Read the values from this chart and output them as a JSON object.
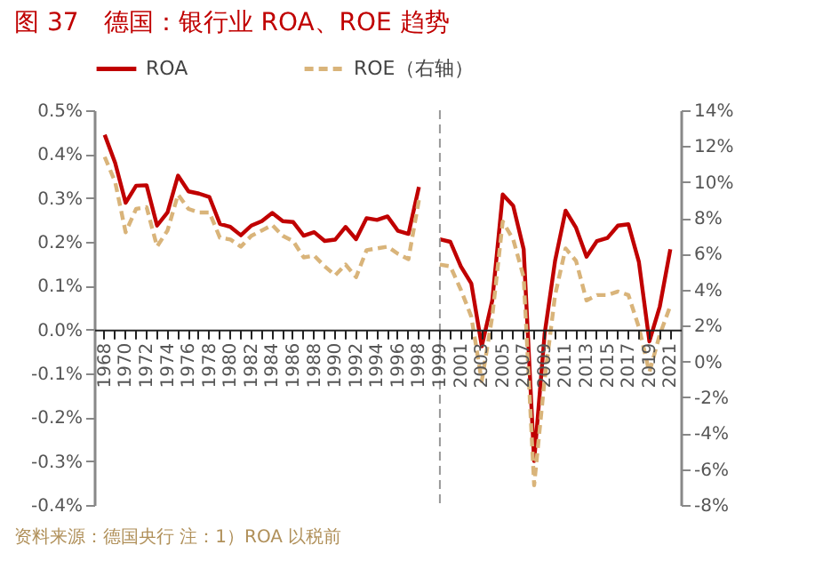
{
  "chart_data": {
    "type": "line",
    "title": "图 37　德国：银行业 ROA、ROE 趋势",
    "categories": [
      "1968",
      null,
      "1970",
      null,
      "1972",
      null,
      "1974",
      null,
      "1976",
      null,
      "1978",
      null,
      "1980",
      null,
      "1982",
      null,
      "1984",
      null,
      "1986",
      null,
      "1988",
      null,
      "1990",
      null,
      "1992",
      null,
      "1994",
      null,
      "1996",
      null,
      "1998",
      null,
      "1999",
      null,
      "2001",
      null,
      "2003",
      null,
      "2005",
      null,
      "2007",
      null,
      "2009",
      null,
      "2011",
      null,
      "2013",
      null,
      "2015",
      null,
      "2017",
      null,
      "2019",
      null,
      "2021"
    ],
    "series": [
      {
        "name": "ROA",
        "color": "#c00000",
        "line_style": "solid",
        "values": [
          0.444,
          0.38,
          0.289,
          0.328,
          0.329,
          0.237,
          0.267,
          0.351,
          0.315,
          0.31,
          0.302,
          0.241,
          0.234,
          0.215,
          0.237,
          0.247,
          0.266,
          0.247,
          0.245,
          0.214,
          0.222,
          0.202,
          0.205,
          0.234,
          0.206,
          0.254,
          0.25,
          0.258,
          0.225,
          0.218,
          0.325,
          null,
          0.206,
          0.2,
          0.144,
          0.105,
          -0.038,
          0.066,
          0.308,
          0.282,
          0.183,
          -0.3,
          -0.01,
          0.157,
          0.271,
          0.232,
          0.166,
          0.202,
          0.209,
          0.237,
          0.24,
          0.154,
          -0.027,
          0.053,
          0.183
        ]
      },
      {
        "name": "ROE（右轴）",
        "color": "#d9b47a",
        "line_style": "dashed",
        "axis": "y2",
        "values": [
          11.4,
          10.0,
          7.2,
          8.5,
          8.6,
          6.4,
          7.3,
          9.3,
          8.5,
          8.3,
          8.3,
          6.9,
          6.8,
          6.4,
          7.0,
          7.3,
          7.6,
          7.0,
          6.7,
          5.8,
          5.9,
          5.3,
          4.8,
          5.4,
          4.7,
          6.2,
          6.3,
          6.4,
          6.0,
          5.7,
          9.0,
          null,
          5.4,
          5.3,
          4.0,
          2.5,
          -1.1,
          2.5,
          7.8,
          6.8,
          4.7,
          -6.9,
          -1.0,
          3.7,
          6.3,
          5.6,
          3.4,
          3.7,
          3.7,
          3.9,
          3.7,
          1.9,
          -0.6,
          1.5,
          3.1
        ]
      }
    ],
    "ylim": [
      -0.4,
      0.5
    ],
    "yticks": [
      {
        "value": -0.4,
        "label": "-0.4%"
      },
      {
        "value": -0.3,
        "label": "-0.3%"
      },
      {
        "value": -0.2,
        "label": "-0.2%"
      },
      {
        "value": -0.1,
        "label": "-0.1%"
      },
      {
        "value": 0,
        "label": "0.0%"
      },
      {
        "value": 0.1,
        "label": "0.1%"
      },
      {
        "value": 0.2,
        "label": "0.2%"
      },
      {
        "value": 0.3,
        "label": "0.3%"
      },
      {
        "value": 0.4,
        "label": "0.4%"
      },
      {
        "value": 0.5,
        "label": "0.5%"
      }
    ],
    "y2lim": [
      -8,
      14
    ],
    "y2ticks": [
      {
        "value": -8,
        "label": "-8%"
      },
      {
        "value": -6,
        "label": "-6%"
      },
      {
        "value": -4,
        "label": "-4%"
      },
      {
        "value": -2,
        "label": "-2%"
      },
      {
        "value": 0,
        "label": "0%"
      },
      {
        "value": 2,
        "label": "2%"
      },
      {
        "value": 4,
        "label": "4%"
      },
      {
        "value": 6,
        "label": "6%"
      },
      {
        "value": 8,
        "label": "8%"
      },
      {
        "value": 10,
        "label": "10%"
      },
      {
        "value": 12,
        "label": "12%"
      },
      {
        "value": 14,
        "label": "14%"
      }
    ],
    "ref_lines": [
      {
        "axis": "x",
        "value": "1999",
        "color": "#999999",
        "line_style": "dashed"
      }
    ],
    "grid": false,
    "legend": "top",
    "annotations": [
      "资料来源：德国央行 注：1）ROA 以税前"
    ]
  }
}
